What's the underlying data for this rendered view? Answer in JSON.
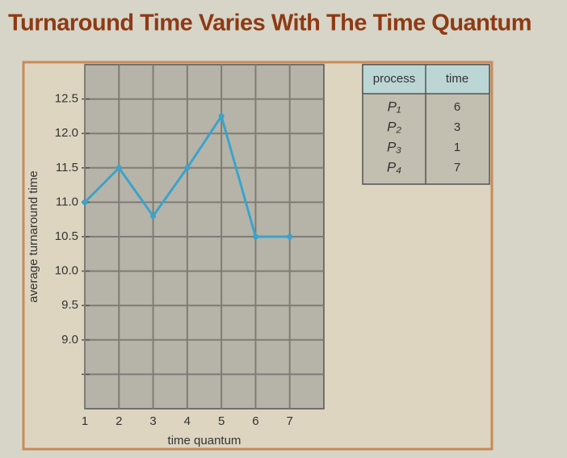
{
  "title": "Turnaround Time Varies With The Time Quantum",
  "chart_data": {
    "type": "line",
    "xlabel": "time quantum",
    "ylabel": "average turnaround time",
    "x": [
      1,
      2,
      3,
      4,
      5,
      6,
      7
    ],
    "values": [
      11.0,
      11.5,
      10.8,
      11.5,
      12.25,
      10.5,
      10.5
    ],
    "color": "#3ba3cc",
    "xlim": [
      1,
      8
    ],
    "xticks": [
      1,
      2,
      3,
      4,
      5,
      6,
      7
    ],
    "ylim": [
      8,
      13
    ],
    "yticks": [
      {
        "value": 8.5,
        "label": null
      },
      {
        "value": 9,
        "label": "9.0"
      },
      9.5,
      {
        "value": 10,
        "label": "10.0"
      },
      10.5,
      {
        "value": 11,
        "label": "11.0"
      },
      11.5,
      {
        "value": 12,
        "label": "12.0"
      },
      12.5
    ],
    "grid": true
  },
  "table": {
    "columns": [
      "process",
      "time"
    ],
    "rows": [
      [
        "P₁",
        6
      ],
      [
        "P₂",
        3
      ],
      [
        "P₃",
        1
      ],
      [
        "P₄",
        7
      ]
    ]
  }
}
